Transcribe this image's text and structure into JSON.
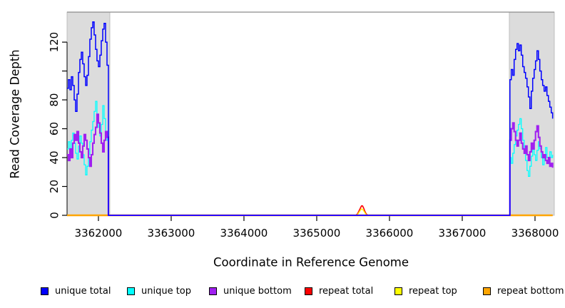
{
  "chart_data": {
    "type": "line",
    "title": "",
    "xlabel": "Coordinate in Reference Genome",
    "ylabel": "Read Coverage Depth",
    "xlim": [
      3361569,
      3368265
    ],
    "ylim": [
      0,
      140.8
    ],
    "grid": false,
    "legend_position": "bottom",
    "xticks": [
      3362000,
      3363000,
      3364000,
      3365000,
      3366000,
      3367000,
      3368000
    ],
    "xtick_labels": [
      "3362000",
      "3363000",
      "3364000",
      "3365000",
      "3366000",
      "3367000",
      "3368000"
    ],
    "yticks": [
      0,
      20,
      40,
      60,
      80,
      100,
      120
    ],
    "ytick_labels": [
      "0",
      "20",
      "40",
      "60",
      "80",
      "",
      "120"
    ],
    "colors": {
      "frame_top": "#8c8c8c",
      "axis": "#000000",
      "region_fill": "#dcdcdc",
      "region_edge": "#b4b4b4"
    },
    "highlight_regions": [
      {
        "x0": 3361569,
        "x1": 3362157
      },
      {
        "x0": 3367647,
        "x1": 3368265
      }
    ],
    "draw_order": [
      3,
      4,
      5,
      1,
      2,
      0
    ],
    "series": [
      {
        "label": "unique total",
        "color": "#0000FF",
        "width": 1.5,
        "step": true,
        "points": [
          [
            3361569,
            88
          ],
          [
            3361588,
            94
          ],
          [
            3361608,
            87
          ],
          [
            3361628,
            96
          ],
          [
            3361647,
            90
          ],
          [
            3361667,
            80
          ],
          [
            3361686,
            72
          ],
          [
            3361706,
            84
          ],
          [
            3361726,
            99
          ],
          [
            3361745,
            108
          ],
          [
            3361765,
            113
          ],
          [
            3361784,
            105
          ],
          [
            3361804,
            96
          ],
          [
            3361824,
            90
          ],
          [
            3361843,
            97
          ],
          [
            3361863,
            110
          ],
          [
            3361882,
            122
          ],
          [
            3361902,
            130
          ],
          [
            3361922,
            134
          ],
          [
            3361941,
            125
          ],
          [
            3361961,
            115
          ],
          [
            3361980,
            107
          ],
          [
            3362000,
            103
          ],
          [
            3362020,
            111
          ],
          [
            3362039,
            121
          ],
          [
            3362059,
            129
          ],
          [
            3362078,
            133
          ],
          [
            3362098,
            120
          ],
          [
            3362118,
            104
          ],
          [
            3362137,
            97
          ],
          [
            3362137,
            0
          ],
          [
            3367655,
            0
          ],
          [
            3367655,
            94
          ],
          [
            3367674,
            101
          ],
          [
            3367694,
            97
          ],
          [
            3367713,
            108
          ],
          [
            3367733,
            115
          ],
          [
            3367753,
            119
          ],
          [
            3367772,
            114
          ],
          [
            3367792,
            118
          ],
          [
            3367811,
            111
          ],
          [
            3367831,
            103
          ],
          [
            3367851,
            99
          ],
          [
            3367870,
            95
          ],
          [
            3367890,
            89
          ],
          [
            3367909,
            82
          ],
          [
            3367929,
            74
          ],
          [
            3367949,
            86
          ],
          [
            3367968,
            95
          ],
          [
            3367988,
            101
          ],
          [
            3368007,
            107
          ],
          [
            3368027,
            114
          ],
          [
            3368047,
            108
          ],
          [
            3368066,
            100
          ],
          [
            3368086,
            94
          ],
          [
            3368105,
            90
          ],
          [
            3368125,
            86
          ],
          [
            3368145,
            89
          ],
          [
            3368164,
            83
          ],
          [
            3368184,
            79
          ],
          [
            3368203,
            75
          ],
          [
            3368223,
            71
          ],
          [
            3368242,
            67
          ]
        ]
      },
      {
        "label": "unique top",
        "color": "#00FFFF",
        "width": 1.3,
        "step": true,
        "points": [
          [
            3361569,
            46
          ],
          [
            3361588,
            51
          ],
          [
            3361608,
            44
          ],
          [
            3361628,
            52
          ],
          [
            3361647,
            57
          ],
          [
            3361667,
            50
          ],
          [
            3361686,
            43
          ],
          [
            3361706,
            39
          ],
          [
            3361726,
            48
          ],
          [
            3361745,
            55
          ],
          [
            3361765,
            50
          ],
          [
            3361784,
            42
          ],
          [
            3361804,
            35
          ],
          [
            3361824,
            28
          ],
          [
            3361843,
            34
          ],
          [
            3361863,
            42
          ],
          [
            3361882,
            51
          ],
          [
            3361902,
            59
          ],
          [
            3361922,
            65
          ],
          [
            3361941,
            72
          ],
          [
            3361961,
            79
          ],
          [
            3361980,
            69
          ],
          [
            3362000,
            61
          ],
          [
            3362020,
            55
          ],
          [
            3362039,
            63
          ],
          [
            3362059,
            76
          ],
          [
            3362078,
            67
          ],
          [
            3362098,
            57
          ],
          [
            3362118,
            52
          ],
          [
            3362137,
            55
          ],
          [
            3362137,
            0
          ],
          [
            3367655,
            0
          ],
          [
            3367655,
            40
          ],
          [
            3367674,
            36
          ],
          [
            3367694,
            43
          ],
          [
            3367713,
            49
          ],
          [
            3367733,
            55
          ],
          [
            3367753,
            59
          ],
          [
            3367772,
            63
          ],
          [
            3367792,
            67
          ],
          [
            3367811,
            60
          ],
          [
            3367831,
            52
          ],
          [
            3367851,
            44
          ],
          [
            3367870,
            38
          ],
          [
            3367890,
            31
          ],
          [
            3367909,
            27
          ],
          [
            3367929,
            34
          ],
          [
            3367949,
            41
          ],
          [
            3367968,
            47
          ],
          [
            3367988,
            42
          ],
          [
            3368007,
            38
          ],
          [
            3368027,
            45
          ],
          [
            3368047,
            51
          ],
          [
            3368066,
            46
          ],
          [
            3368086,
            40
          ],
          [
            3368105,
            35
          ],
          [
            3368125,
            42
          ],
          [
            3368145,
            47
          ],
          [
            3368164,
            40
          ],
          [
            3368184,
            36
          ],
          [
            3368203,
            44
          ],
          [
            3368223,
            40
          ],
          [
            3368242,
            42
          ]
        ]
      },
      {
        "label": "unique bottom",
        "color": "#A020F0",
        "width": 2.1,
        "step": true,
        "points": [
          [
            3361569,
            42
          ],
          [
            3361588,
            38
          ],
          [
            3361608,
            46
          ],
          [
            3361628,
            40
          ],
          [
            3361647,
            50
          ],
          [
            3361667,
            56
          ],
          [
            3361686,
            52
          ],
          [
            3361706,
            58
          ],
          [
            3361726,
            50
          ],
          [
            3361745,
            44
          ],
          [
            3361765,
            40
          ],
          [
            3361784,
            48
          ],
          [
            3361804,
            56
          ],
          [
            3361824,
            52
          ],
          [
            3361843,
            46
          ],
          [
            3361863,
            40
          ],
          [
            3361882,
            34
          ],
          [
            3361902,
            42
          ],
          [
            3361922,
            50
          ],
          [
            3361941,
            56
          ],
          [
            3361961,
            61
          ],
          [
            3361980,
            70
          ],
          [
            3362000,
            64
          ],
          [
            3362020,
            57
          ],
          [
            3362039,
            50
          ],
          [
            3362059,
            44
          ],
          [
            3362078,
            52
          ],
          [
            3362098,
            58
          ],
          [
            3362118,
            54
          ],
          [
            3362137,
            50
          ],
          [
            3362137,
            0
          ],
          [
            3367655,
            0
          ],
          [
            3367655,
            52
          ],
          [
            3367674,
            60
          ],
          [
            3367694,
            64
          ],
          [
            3367713,
            58
          ],
          [
            3367733,
            52
          ],
          [
            3367753,
            48
          ],
          [
            3367772,
            52
          ],
          [
            3367792,
            57
          ],
          [
            3367811,
            50
          ],
          [
            3367831,
            46
          ],
          [
            3367851,
            43
          ],
          [
            3367870,
            48
          ],
          [
            3367890,
            42
          ],
          [
            3367909,
            38
          ],
          [
            3367929,
            44
          ],
          [
            3367949,
            50
          ],
          [
            3367968,
            46
          ],
          [
            3367988,
            52
          ],
          [
            3368007,
            58
          ],
          [
            3368027,
            62
          ],
          [
            3368047,
            54
          ],
          [
            3368066,
            48
          ],
          [
            3368086,
            44
          ],
          [
            3368105,
            40
          ],
          [
            3368125,
            42
          ],
          [
            3368145,
            38
          ],
          [
            3368164,
            36
          ],
          [
            3368184,
            40
          ],
          [
            3368203,
            34
          ],
          [
            3368223,
            36
          ],
          [
            3368242,
            33
          ]
        ]
      },
      {
        "label": "repeat total",
        "color": "#FF0000",
        "width": 1.6,
        "step": false,
        "points": [
          [
            3361569,
            0
          ],
          [
            3365540,
            0
          ],
          [
            3365560,
            1
          ],
          [
            3365580,
            3
          ],
          [
            3365600,
            5
          ],
          [
            3365615,
            6.5
          ],
          [
            3365630,
            6.5
          ],
          [
            3365645,
            5
          ],
          [
            3365660,
            3
          ],
          [
            3365680,
            1
          ],
          [
            3365700,
            0
          ],
          [
            3368242,
            0
          ]
        ]
      },
      {
        "label": "repeat top",
        "color": "#FFFF00",
        "width": 1.4,
        "step": false,
        "points": [
          [
            3361569,
            0
          ],
          [
            3365555,
            0
          ],
          [
            3365580,
            2
          ],
          [
            3365600,
            3.5
          ],
          [
            3365620,
            4.5
          ],
          [
            3365640,
            3.5
          ],
          [
            3365660,
            2
          ],
          [
            3365685,
            0
          ],
          [
            3368242,
            0
          ]
        ]
      },
      {
        "label": "repeat bottom",
        "color": "#FFA500",
        "width": 2.6,
        "step": false,
        "points": [
          [
            3361569,
            0
          ],
          [
            3368242,
            0
          ]
        ]
      }
    ]
  }
}
